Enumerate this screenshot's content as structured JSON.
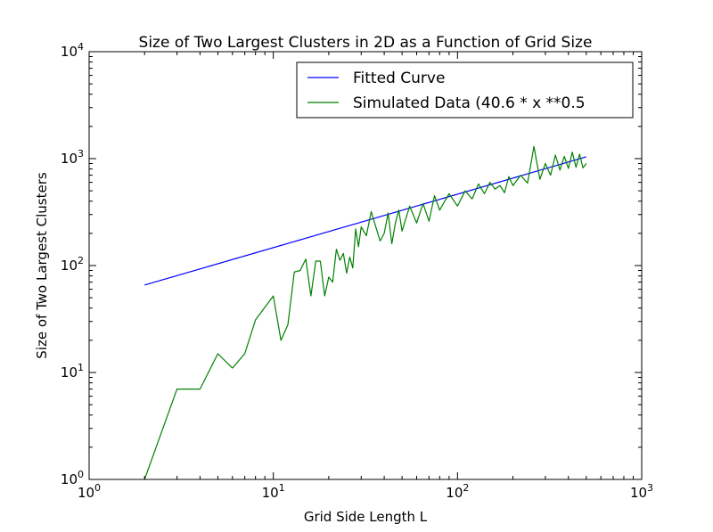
{
  "chart_data": {
    "type": "line",
    "title": "Size of Two Largest Clusters in 2D as a Function of Grid Size",
    "xlabel": "Grid Side Length L",
    "ylabel": "Size of Two Largest Clusters",
    "xscale": "log",
    "yscale": "log",
    "xlim": [
      1,
      1000
    ],
    "ylim": [
      1,
      10000
    ],
    "x_ticks": [
      {
        "base": "10",
        "exp": "0"
      },
      {
        "base": "10",
        "exp": "1"
      },
      {
        "base": "10",
        "exp": "2"
      },
      {
        "base": "10",
        "exp": "3"
      }
    ],
    "y_ticks": [
      {
        "base": "10",
        "exp": "0"
      },
      {
        "base": "10",
        "exp": "1"
      },
      {
        "base": "10",
        "exp": "2"
      },
      {
        "base": "10",
        "exp": "3"
      },
      {
        "base": "10",
        "exp": "4"
      }
    ],
    "legend_position": "top-right",
    "grid": false,
    "series": [
      {
        "name": "Fitted Curve",
        "color": "#0000ff",
        "model": "power",
        "coefficient": 46.5,
        "exponent": 0.5,
        "x_range": [
          2,
          500
        ]
      },
      {
        "name": "Simulated Data (40.6 * x **0.5",
        "color": "#008000",
        "x": [
          2,
          3,
          4,
          5,
          6,
          7,
          8,
          10,
          11,
          12,
          13,
          14,
          15,
          16,
          17,
          18,
          19,
          20,
          21,
          22,
          23,
          24,
          25,
          26,
          27,
          28,
          29,
          30,
          32,
          34,
          36,
          38,
          40,
          42,
          44,
          46,
          48,
          50,
          55,
          60,
          65,
          70,
          75,
          80,
          90,
          100,
          110,
          120,
          130,
          140,
          150,
          160,
          170,
          180,
          190,
          200,
          220,
          240,
          260,
          280,
          300,
          320,
          340,
          360,
          380,
          400,
          420,
          440,
          460,
          480,
          500
        ],
        "y": [
          1,
          7,
          7,
          15,
          11,
          15,
          31,
          52,
          20,
          28,
          87,
          90,
          115,
          52,
          110,
          110,
          52,
          78,
          70,
          142,
          112,
          130,
          85,
          120,
          95,
          220,
          150,
          230,
          190,
          320,
          230,
          170,
          200,
          310,
          160,
          250,
          330,
          210,
          360,
          250,
          380,
          260,
          450,
          330,
          470,
          360,
          500,
          420,
          580,
          470,
          600,
          520,
          560,
          480,
          680,
          560,
          700,
          590,
          1300,
          640,
          900,
          700,
          1080,
          780,
          1050,
          810,
          1150,
          830,
          1100,
          820,
          900
        ]
      }
    ]
  }
}
